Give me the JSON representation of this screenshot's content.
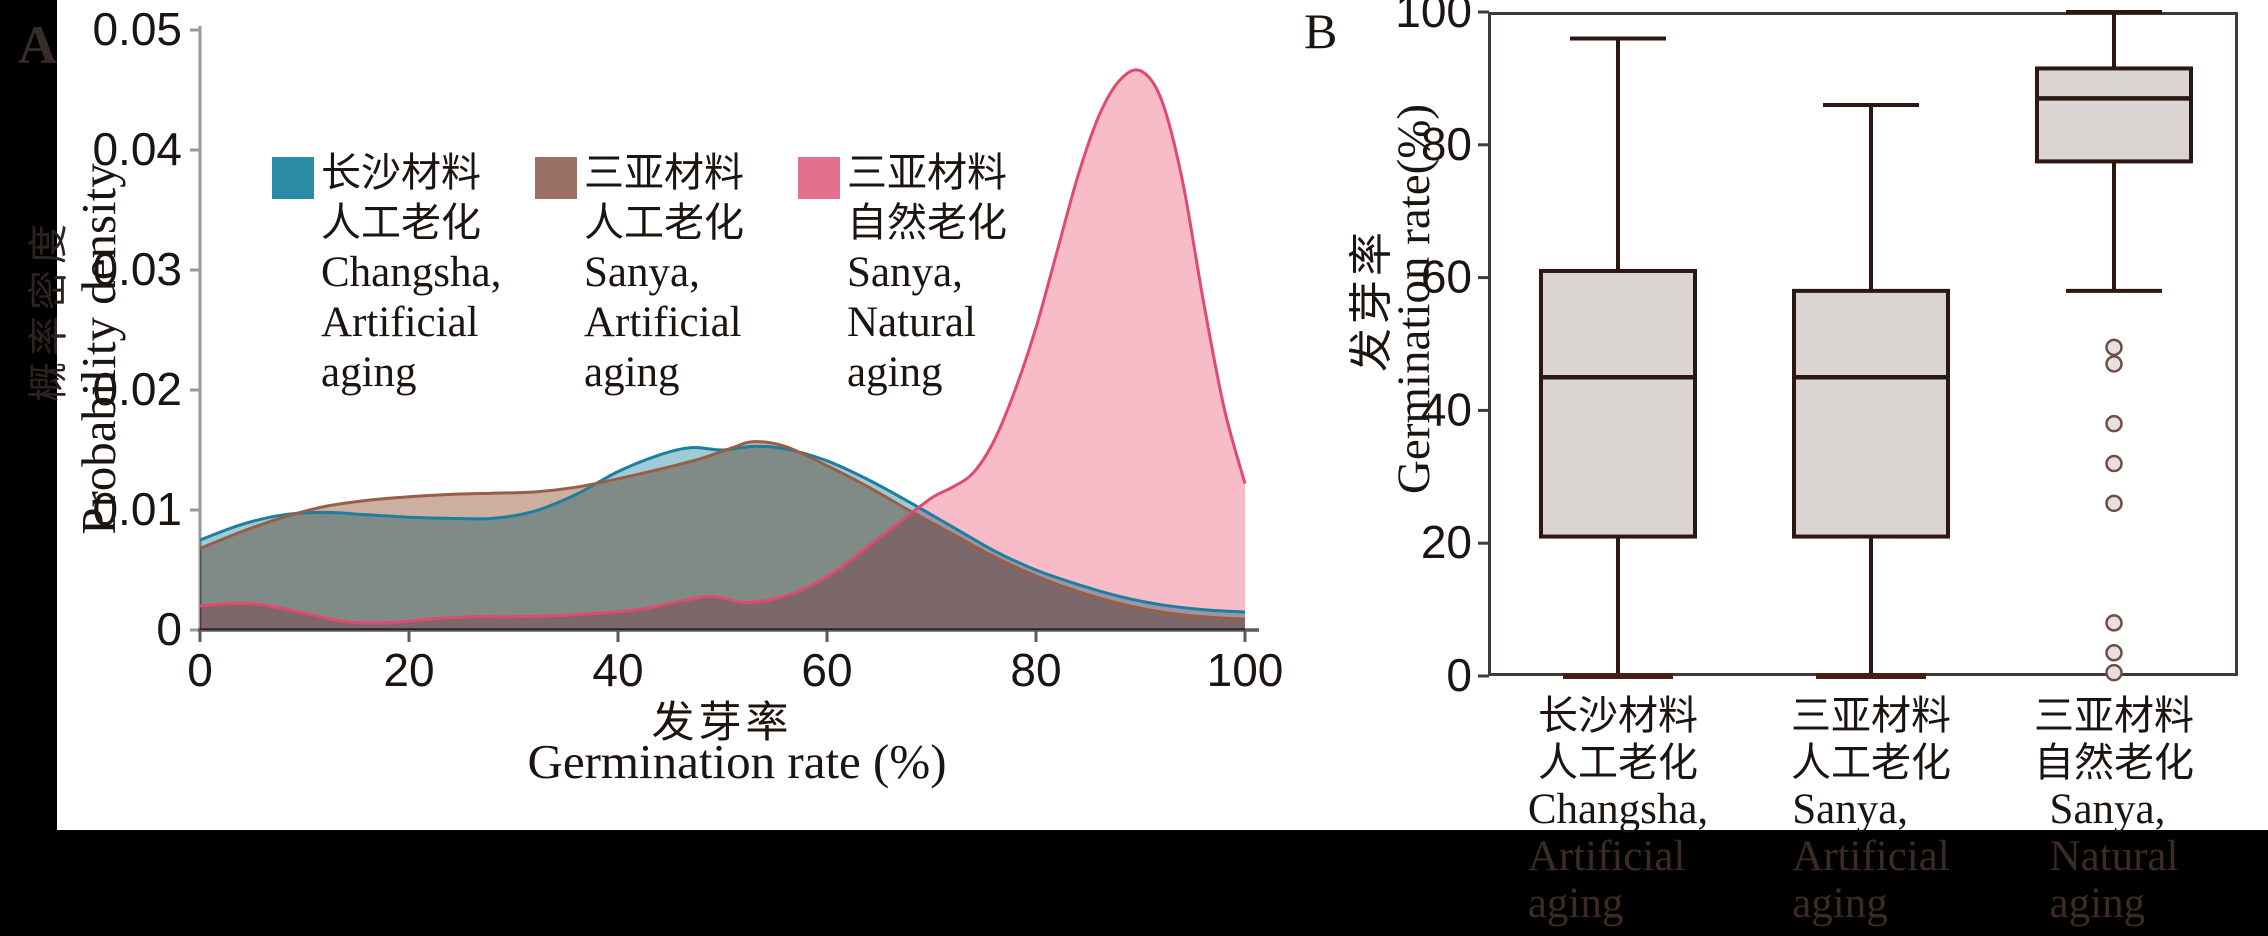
{
  "panelA": {
    "label": "A",
    "y_title_zh": "概率密度",
    "y_title_en": "Probability density",
    "x_title_zh": "发芽率",
    "x_title_en": "Germination rate  (%)",
    "legend": [
      {
        "color": "#2b8ca8",
        "lines": [
          "长沙材料",
          "人工老化",
          "Changsha,",
          "Artificial",
          "aging"
        ]
      },
      {
        "color": "#9a7164",
        "lines": [
          "三亚材料",
          "人工老化",
          "Sanya,",
          "Artificial",
          "aging"
        ]
      },
      {
        "color": "#e4708c",
        "lines": [
          "三亚材料",
          "自然老化",
          "Sanya,",
          "Natural",
          "aging"
        ]
      }
    ]
  },
  "panelB": {
    "label": "B",
    "y_title_zh": "发芽率",
    "y_title_en": "Germination rate(%)",
    "categories": [
      {
        "lines": [
          "长沙材料",
          "人工老化",
          "Changsha,",
          "Artificial",
          "aging"
        ]
      },
      {
        "lines": [
          "三亚材料",
          "人工老化",
          "Sanya,",
          "Artificial",
          "aging"
        ]
      },
      {
        "lines": [
          "三亚材料",
          "自然老化",
          "Sanya,",
          "Natural",
          "aging"
        ]
      }
    ]
  },
  "chart_data": [
    {
      "type": "area",
      "subtype": "kernel-density",
      "panel": "A",
      "title": "",
      "xlabel": "发芽率 Germination rate (%)",
      "ylabel": "概率密度 Probability density",
      "xlim": [
        0,
        100
      ],
      "ylim": [
        0,
        0.05
      ],
      "x_ticks": [
        {
          "label": "0",
          "value": 0
        },
        {
          "label": "20",
          "value": 20
        },
        {
          "label": "40",
          "value": 40
        },
        {
          "label": "60",
          "value": 60
        },
        {
          "label": "80",
          "value": 80
        },
        {
          "label": "100",
          "value": 100
        }
      ],
      "y_ticks": [
        {
          "label": "0",
          "value": 0
        },
        {
          "label": "0.01",
          "value": 0.01
        },
        {
          "label": "0.02",
          "value": 0.02
        },
        {
          "label": "0.03",
          "value": 0.03
        },
        {
          "label": "0.04",
          "value": 0.04
        },
        {
          "label": "0.05",
          "value": 0.05
        }
      ],
      "legend_position": "upper-left-inside",
      "grid": false,
      "series": [
        {
          "name": "长沙材料 人工老化 Changsha, Artificial aging",
          "stroke": "#1e7e9e",
          "fill": "#9fcbd9",
          "points": [
            [
              0,
              0.0075
            ],
            [
              4,
              0.0088
            ],
            [
              8,
              0.0096
            ],
            [
              12,
              0.0098
            ],
            [
              16,
              0.0096
            ],
            [
              20,
              0.0094
            ],
            [
              24,
              0.0093
            ],
            [
              28,
              0.0093
            ],
            [
              32,
              0.0099
            ],
            [
              36,
              0.0113
            ],
            [
              40,
              0.0132
            ],
            [
              44,
              0.0146
            ],
            [
              47,
              0.0152
            ],
            [
              50,
              0.015
            ],
            [
              53,
              0.0153
            ],
            [
              56,
              0.0151
            ],
            [
              60,
              0.0141
            ],
            [
              64,
              0.0125
            ],
            [
              68,
              0.0106
            ],
            [
              72,
              0.0086
            ],
            [
              76,
              0.0066
            ],
            [
              80,
              0.005
            ],
            [
              84,
              0.0038
            ],
            [
              88,
              0.0028
            ],
            [
              92,
              0.0021
            ],
            [
              96,
              0.0017
            ],
            [
              100,
              0.0015
            ]
          ]
        },
        {
          "name": "三亚材料 人工老化 Sanya, Artificial aging",
          "stroke": "#985f46",
          "fill": "#cdaf9f",
          "points": [
            [
              0,
              0.0068
            ],
            [
              4,
              0.0082
            ],
            [
              8,
              0.0094
            ],
            [
              12,
              0.0103
            ],
            [
              16,
              0.0108
            ],
            [
              20,
              0.0111
            ],
            [
              24,
              0.0113
            ],
            [
              28,
              0.0114
            ],
            [
              32,
              0.0115
            ],
            [
              36,
              0.0119
            ],
            [
              40,
              0.0126
            ],
            [
              44,
              0.0134
            ],
            [
              48,
              0.0143
            ],
            [
              51,
              0.0152
            ],
            [
              53,
              0.0157
            ],
            [
              56,
              0.0153
            ],
            [
              60,
              0.0137
            ],
            [
              64,
              0.0119
            ],
            [
              68,
              0.0099
            ],
            [
              72,
              0.008
            ],
            [
              76,
              0.0061
            ],
            [
              80,
              0.0045
            ],
            [
              84,
              0.0032
            ],
            [
              88,
              0.0022
            ],
            [
              92,
              0.0015
            ],
            [
              96,
              0.0011
            ],
            [
              100,
              0.0009
            ]
          ]
        },
        {
          "name": "三亚材料 自然老化 Sanya, Natural aging",
          "stroke": "#e04a71",
          "fill": "#f7bcc8",
          "points": [
            [
              0,
              0.002
            ],
            [
              3,
              0.0022
            ],
            [
              6,
              0.0021
            ],
            [
              10,
              0.0014
            ],
            [
              14,
              0.0007
            ],
            [
              18,
              0.0006
            ],
            [
              22,
              0.0009
            ],
            [
              26,
              0.0011
            ],
            [
              30,
              0.0011
            ],
            [
              34,
              0.0012
            ],
            [
              38,
              0.0014
            ],
            [
              42,
              0.0017
            ],
            [
              46,
              0.0024
            ],
            [
              49,
              0.0028
            ],
            [
              52,
              0.0023
            ],
            [
              55,
              0.0026
            ],
            [
              58,
              0.0035
            ],
            [
              61,
              0.005
            ],
            [
              64,
              0.007
            ],
            [
              67,
              0.009
            ],
            [
              70,
              0.011
            ],
            [
              72,
              0.0119
            ],
            [
              74,
              0.0131
            ],
            [
              76,
              0.0158
            ],
            [
              78,
              0.02
            ],
            [
              80,
              0.0252
            ],
            [
              82,
              0.0315
            ],
            [
              84,
              0.0378
            ],
            [
              86,
              0.0428
            ],
            [
              88,
              0.0458
            ],
            [
              90,
              0.0466
            ],
            [
              92,
              0.0442
            ],
            [
              94,
              0.0375
            ],
            [
              96,
              0.0275
            ],
            [
              98,
              0.0185
            ],
            [
              100,
              0.0122
            ]
          ]
        }
      ]
    },
    {
      "type": "box",
      "panel": "B",
      "title": "",
      "xlabel": "",
      "ylabel": "发芽率 Germination rate(%)",
      "ylim": [
        0,
        100
      ],
      "y_ticks": [
        {
          "label": "0",
          "value": 0
        },
        {
          "label": "20",
          "value": 20
        },
        {
          "label": "40",
          "value": 40
        },
        {
          "label": "60",
          "value": 60
        },
        {
          "label": "80",
          "value": 80
        },
        {
          "label": "100",
          "value": 100
        }
      ],
      "grid": false,
      "box_fill": "#dad5d2",
      "box_stroke": "#2c1712",
      "categories": [
        "长沙材料 人工老化 Changsha, Artificial aging",
        "三亚材料 人工老化 Sanya, Artificial aging",
        "三亚材料 自然老化 Sanya, Natural aging"
      ],
      "boxes": [
        {
          "low": 0,
          "q1": 21,
          "median": 45,
          "q3": 61,
          "high": 96,
          "outliers": []
        },
        {
          "low": 0,
          "q1": 21,
          "median": 45,
          "q3": 58,
          "high": 86,
          "outliers": []
        },
        {
          "low": 58,
          "q1": 77.5,
          "median": 87,
          "q3": 91.5,
          "high": 100,
          "outliers": [
            49.5,
            47,
            38,
            32,
            26,
            8,
            3.5,
            0.5
          ]
        }
      ]
    }
  ]
}
